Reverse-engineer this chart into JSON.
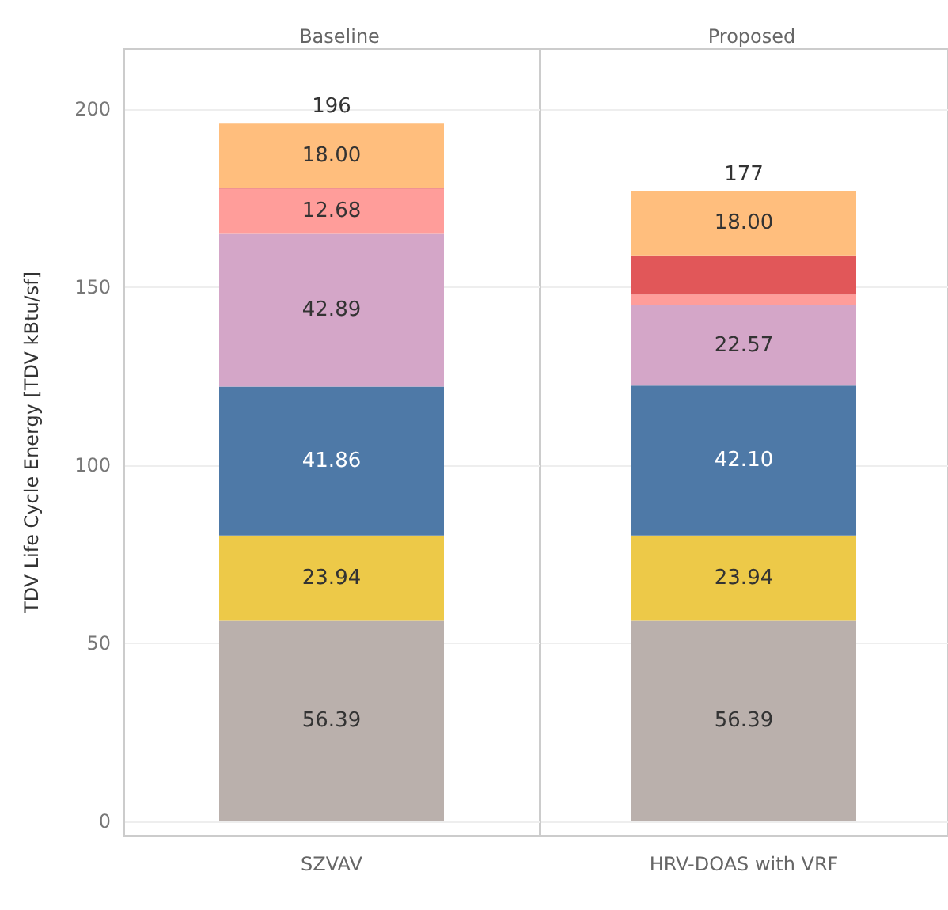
{
  "chart_data": [
    {
      "type": "bar",
      "title": "Baseline",
      "ylabel": "TDV Life Cycle Energy [TDV kBtu/sf]",
      "categories": [
        "SZVAV"
      ],
      "stacked": true,
      "ylim": [
        -4,
        217
      ],
      "yticks": [
        0,
        50,
        100,
        150,
        200
      ],
      "grid": "y",
      "totals": [
        "196"
      ],
      "series": [
        {
          "color": "#bab0ac",
          "values": [
            56.39
          ],
          "value_labels": [
            "56.39"
          ]
        },
        {
          "color": "#edc948",
          "values": [
            23.94
          ],
          "value_labels": [
            "23.94"
          ]
        },
        {
          "color": "#4e79a7",
          "values": [
            41.86
          ],
          "value_labels": [
            "41.86"
          ]
        },
        {
          "color": "#d4a6c8",
          "values": [
            42.89
          ],
          "value_labels": [
            "42.89"
          ]
        },
        {
          "color": "#ff9d9a",
          "values": [
            12.68
          ],
          "value_labels": [
            "12.68"
          ]
        },
        {
          "color": "#e15759",
          "values": [
            0.3
          ],
          "value_labels": [
            null
          ]
        },
        {
          "color": "#ffbe7d",
          "values": [
            18.0
          ],
          "value_labels": [
            "18.00"
          ]
        }
      ]
    },
    {
      "type": "bar",
      "title": "Proposed",
      "categories": [
        "HRV-DOAS with VRF"
      ],
      "stacked": true,
      "ylim": [
        -4,
        217
      ],
      "yticks": [
        0,
        50,
        100,
        150,
        200
      ],
      "grid": "y",
      "tick_labels": "x",
      "totals": [
        "177"
      ],
      "series": [
        {
          "color": "#bab0ac",
          "values": [
            56.39
          ],
          "value_labels": [
            "56.39"
          ]
        },
        {
          "color": "#edc948",
          "values": [
            23.94
          ],
          "value_labels": [
            "23.94"
          ]
        },
        {
          "color": "#4e79a7",
          "values": [
            42.1
          ],
          "value_labels": [
            "42.10"
          ]
        },
        {
          "color": "#d4a6c8",
          "values": [
            22.57
          ],
          "value_labels": [
            "22.57"
          ]
        },
        {
          "color": "#ff9d9a",
          "values": [
            3.0
          ],
          "value_labels": [
            null
          ]
        },
        {
          "color": "#e15759",
          "values": [
            11.0
          ],
          "value_labels": [
            null
          ]
        },
        {
          "color": "#ffbe7d",
          "values": [
            18.0
          ],
          "value_labels": [
            "18.00"
          ]
        }
      ]
    }
  ]
}
